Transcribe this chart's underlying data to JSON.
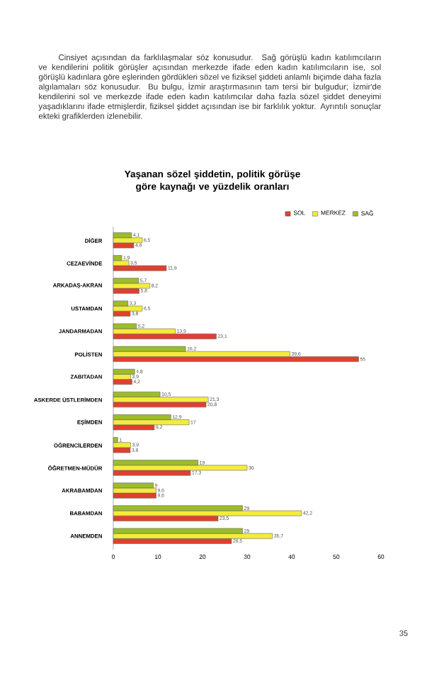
{
  "chart_data": {
    "type": "bar",
    "orientation": "horizontal",
    "title": "Yaşanan sözel şiddetin, politik görüşe göre kaynağı ve yüzdelik oranları",
    "annotations": [
      "Cinsiyet açısından da farklılaşmalar söz konusudur. Sağ görüşlü kadın katılımcıların ve kendilerini politik görüşler açısından merkezde ifade eden kadın katılımcıların ise, sol görüşlü kadınlara göre eşlerinden gördükleri sözel ve fiziksel şiddeti anlamlı biçimde daha fazla algılamaları söz konusudur. Bu bulgu, İzmir araştırmasının tam tersi bir bulgudur; İzmir'de kendilerini sol ve merkezde ifade eden kadın katılımcılar daha fazla sözel şiddet deneyimi yaşadıklarını ifade etmişlerdir, fiziksel şiddet açısından ise bir farklılık yoktur. Ayrıntılı sonuçlar ekteki grafiklerden izlenebilir.",
      "35"
    ],
    "categories": [
      "DİĞER",
      "CEZAEVİNDE",
      "ARKADAŞ-AKRAN",
      "USTAMDAN",
      "JANDARMADAN",
      "POLİSTEN",
      "ZABITADAN",
      "ASKERDE ÜSTLERİMDEN",
      "EŞİMDEN",
      "ÖĞRENCİLERDEN",
      "ÖĞRETMEN-MÜDÜR",
      "AKRABAMDAN",
      "BABAMDAN",
      "ANNEMDEN"
    ],
    "series": [
      {
        "name": "SOL",
        "color": "#e0402e",
        "values": [
          4.6,
          11.9,
          5.8,
          3.8,
          23.1,
          55,
          4.2,
          20.8,
          9.2,
          3.8,
          17.3,
          9.6,
          23.5,
          26.5
        ],
        "value_labels": [
          "4,6",
          "11,9",
          "5,8",
          "3,8",
          "23,1",
          "55",
          "4,2",
          "20,8",
          "9,2",
          "3,8",
          "17,3",
          "9,6",
          "23,5",
          "26,5"
        ]
      },
      {
        "name": "MERKEZ",
        "color": "#f4ec3c",
        "values": [
          6.5,
          3.5,
          8.2,
          6.5,
          13.9,
          39.6,
          3.9,
          21.3,
          17,
          3.9,
          30,
          9.6,
          42.2,
          35.7
        ],
        "value_labels": [
          "6,5",
          "3,5",
          "8,2",
          "6,5",
          "13,9",
          "39,6",
          "3,9",
          "21,3",
          "17",
          "3,9",
          "30",
          "9,6",
          "42,2",
          "35,7"
        ]
      },
      {
        "name": "SAĞ",
        "color": "#9cbc2a",
        "values": [
          4.1,
          1.9,
          5.7,
          3.3,
          5.2,
          16.2,
          4.8,
          10.5,
          12.9,
          1,
          19,
          9,
          29,
          29
        ],
        "value_labels": [
          "4,1",
          "1,9",
          "5,7",
          "3,3",
          "5,2",
          "16,2",
          "4,8",
          "10,5",
          "12,9",
          "1",
          "19",
          "9",
          "29",
          "29"
        ]
      }
    ],
    "xlim": [
      0,
      60
    ],
    "xticks": [
      0,
      10,
      20,
      30,
      40,
      50,
      60
    ],
    "legend": "top right",
    "grid": false
  }
}
